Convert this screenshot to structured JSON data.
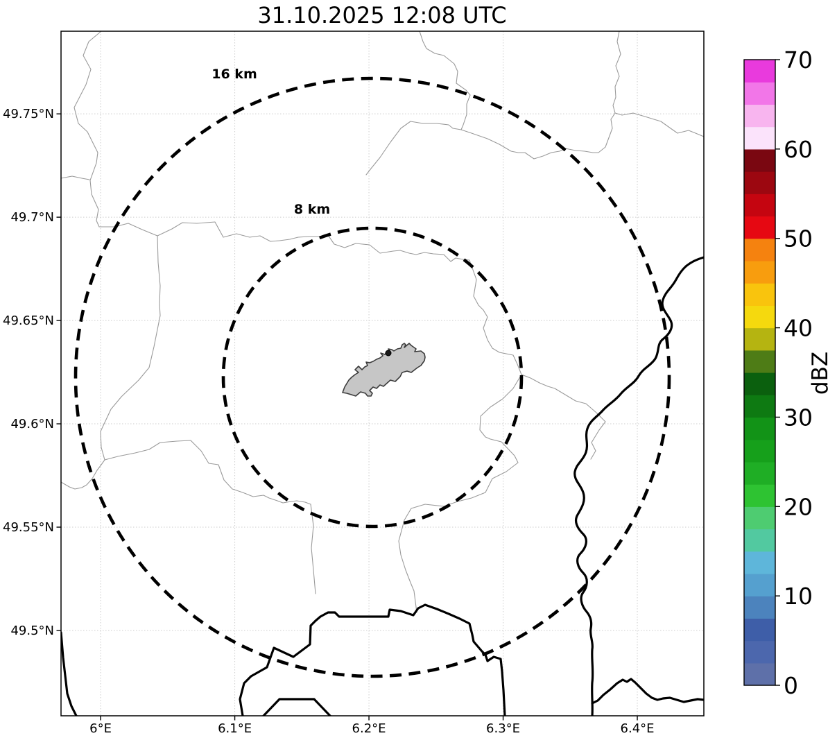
{
  "title": "31.10.2025 12:08 UTC",
  "map": {
    "x_axis": {
      "ticks": [
        {
          "lon": 6.0,
          "label": "6°E"
        },
        {
          "lon": 6.1,
          "label": "6.1°E"
        },
        {
          "lon": 6.2,
          "label": "6.2°E"
        },
        {
          "lon": 6.3,
          "label": "6.3°E"
        },
        {
          "lon": 6.4,
          "label": "6.4°E"
        }
      ]
    },
    "y_axis": {
      "ticks": [
        {
          "lat": 49.5,
          "label": "49.5°N"
        },
        {
          "lat": 49.55,
          "label": "49.55°N"
        },
        {
          "lat": 49.6,
          "label": "49.6°N"
        },
        {
          "lat": 49.65,
          "label": "49.65°N"
        },
        {
          "lat": 49.7,
          "label": "49.7°N"
        },
        {
          "lat": 49.75,
          "label": "49.75°N"
        }
      ]
    },
    "range_rings": [
      {
        "km": 16,
        "label": "16 km"
      },
      {
        "km": 8,
        "label": "8 km"
      }
    ],
    "features": {
      "grid_color": "#cccccc",
      "municipal_boundary_color": "#9a9a9a",
      "country_border_color": "#000000",
      "airport_fill": "#c6c6c6",
      "airport_stroke": "#3c3c3c",
      "radar_marker_color": "#1a1a1a"
    }
  },
  "colorbar": {
    "label": "dBZ",
    "min": 0,
    "max": 70,
    "ticks": [
      0,
      10,
      20,
      30,
      40,
      50,
      60,
      70
    ],
    "segments": [
      {
        "from": 0,
        "to": 2.5,
        "color": "#5e70a9"
      },
      {
        "from": 2.5,
        "to": 5,
        "color": "#4c67ad"
      },
      {
        "from": 5,
        "to": 7.5,
        "color": "#3e5ea8"
      },
      {
        "from": 7.5,
        "to": 10,
        "color": "#4c83bd"
      },
      {
        "from": 10,
        "to": 12.5,
        "color": "#55a0cf"
      },
      {
        "from": 12.5,
        "to": 15,
        "color": "#5eb6da"
      },
      {
        "from": 15,
        "to": 17.5,
        "color": "#52c9a0"
      },
      {
        "from": 17.5,
        "to": 20,
        "color": "#4ecc71"
      },
      {
        "from": 20,
        "to": 22.5,
        "color": "#2ec332"
      },
      {
        "from": 22.5,
        "to": 25,
        "color": "#1fae25"
      },
      {
        "from": 25,
        "to": 27.5,
        "color": "#16a01b"
      },
      {
        "from": 27.5,
        "to": 30,
        "color": "#129317"
      },
      {
        "from": 30,
        "to": 32.5,
        "color": "#0e7a12"
      },
      {
        "from": 32.5,
        "to": 35,
        "color": "#0b600e"
      },
      {
        "from": 35,
        "to": 37.5,
        "color": "#4e7c16"
      },
      {
        "from": 37.5,
        "to": 40,
        "color": "#b5b411"
      },
      {
        "from": 40,
        "to": 42.5,
        "color": "#f5d90e"
      },
      {
        "from": 42.5,
        "to": 45,
        "color": "#f9c40d"
      },
      {
        "from": 45,
        "to": 47.5,
        "color": "#f89d0e"
      },
      {
        "from": 47.5,
        "to": 50,
        "color": "#f5820f"
      },
      {
        "from": 50,
        "to": 52.5,
        "color": "#e60812"
      },
      {
        "from": 52.5,
        "to": 55,
        "color": "#c50510"
      },
      {
        "from": 55,
        "to": 57.5,
        "color": "#9c0710"
      },
      {
        "from": 57.5,
        "to": 60,
        "color": "#7a0711"
      },
      {
        "from": 60,
        "to": 62.5,
        "color": "#fbe3fb"
      },
      {
        "from": 62.5,
        "to": 65,
        "color": "#f8b5ef"
      },
      {
        "from": 65,
        "to": 67.5,
        "color": "#f276e8"
      },
      {
        "from": 67.5,
        "to": 70,
        "color": "#e93add"
      }
    ]
  }
}
